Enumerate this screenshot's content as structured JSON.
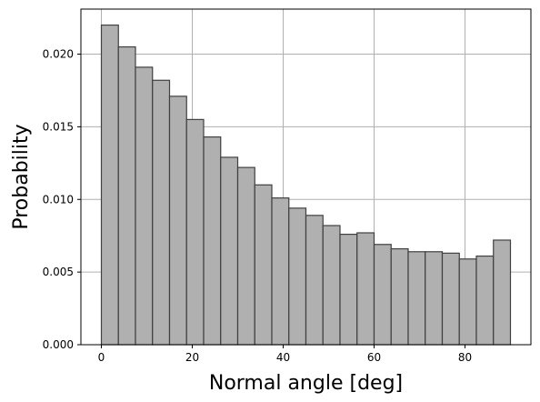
{
  "chart_data": {
    "type": "bar",
    "title": "",
    "xlabel": "Normal angle [deg]",
    "ylabel": "Probability",
    "bin_edges": [
      0,
      3.75,
      7.5,
      11.25,
      15,
      18.75,
      22.5,
      26.25,
      30,
      33.75,
      37.5,
      41.25,
      45,
      48.75,
      52.5,
      56.25,
      60,
      63.75,
      67.5,
      71.25,
      75,
      78.75,
      82.5,
      86.25,
      90
    ],
    "values": [
      0.022,
      0.0205,
      0.0191,
      0.0182,
      0.0171,
      0.0155,
      0.0143,
      0.0129,
      0.0122,
      0.011,
      0.0101,
      0.0094,
      0.0089,
      0.0082,
      0.0076,
      0.0077,
      0.0069,
      0.0066,
      0.0064,
      0.0064,
      0.0063,
      0.0059,
      0.0061,
      0.0072
    ],
    "xlim": [
      -4.5,
      94.5
    ],
    "ylim": [
      0,
      0.0231
    ],
    "xticks": [
      0,
      20,
      40,
      60,
      80
    ],
    "yticks": [
      0.0,
      0.005,
      0.01,
      0.015,
      0.02
    ],
    "xtick_labels": [
      "0",
      "20",
      "40",
      "60",
      "80"
    ],
    "ytick_labels": [
      "0.000",
      "0.005",
      "0.010",
      "0.015",
      "0.020"
    ],
    "grid": true,
    "bar_color": "#b0b0b0",
    "edge_color": "#404040",
    "grid_color": "#b0b0b0"
  }
}
